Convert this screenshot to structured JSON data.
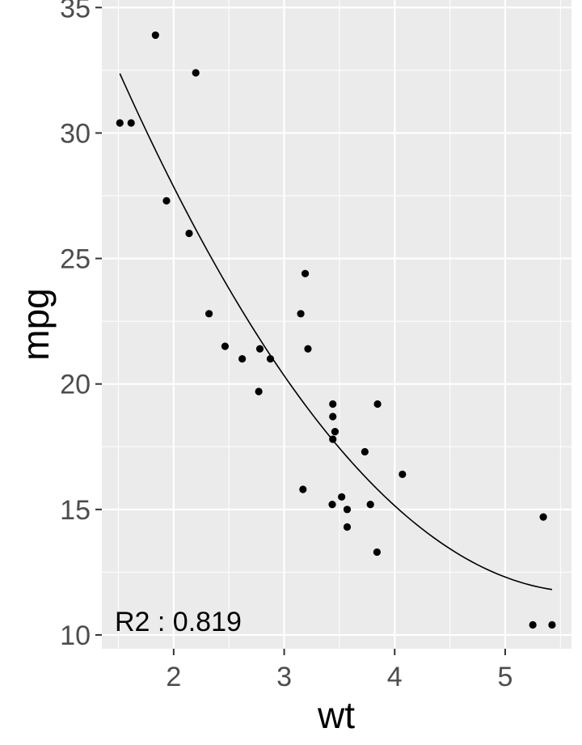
{
  "chart_data": {
    "type": "scatter",
    "title": "",
    "xlabel": "wt",
    "ylabel": "mpg",
    "xlim": [
      1.35,
      5.6
    ],
    "ylim": [
      9.45,
      35.3
    ],
    "x_ticks": [
      2,
      3,
      4,
      5
    ],
    "y_ticks": [
      10,
      15,
      20,
      25,
      30,
      35
    ],
    "grid": true,
    "legend": "none",
    "points": [
      {
        "x": 2.62,
        "y": 21.0
      },
      {
        "x": 2.875,
        "y": 21.0
      },
      {
        "x": 2.32,
        "y": 22.8
      },
      {
        "x": 3.215,
        "y": 21.4
      },
      {
        "x": 3.44,
        "y": 18.7
      },
      {
        "x": 3.46,
        "y": 18.1
      },
      {
        "x": 3.57,
        "y": 14.3
      },
      {
        "x": 3.19,
        "y": 24.4
      },
      {
        "x": 3.15,
        "y": 22.8
      },
      {
        "x": 3.44,
        "y": 19.2
      },
      {
        "x": 3.44,
        "y": 17.8
      },
      {
        "x": 4.07,
        "y": 16.4
      },
      {
        "x": 3.73,
        "y": 17.3
      },
      {
        "x": 3.78,
        "y": 15.2
      },
      {
        "x": 5.25,
        "y": 10.4
      },
      {
        "x": 5.424,
        "y": 10.4
      },
      {
        "x": 5.345,
        "y": 14.7
      },
      {
        "x": 2.2,
        "y": 32.4
      },
      {
        "x": 1.615,
        "y": 30.4
      },
      {
        "x": 1.835,
        "y": 33.9
      },
      {
        "x": 2.465,
        "y": 21.5
      },
      {
        "x": 3.52,
        "y": 15.5
      },
      {
        "x": 3.435,
        "y": 15.2
      },
      {
        "x": 3.84,
        "y": 13.3
      },
      {
        "x": 3.845,
        "y": 19.2
      },
      {
        "x": 1.935,
        "y": 27.3
      },
      {
        "x": 2.14,
        "y": 26.0
      },
      {
        "x": 1.513,
        "y": 30.4
      },
      {
        "x": 3.17,
        "y": 15.8
      },
      {
        "x": 2.77,
        "y": 19.7
      },
      {
        "x": 3.57,
        "y": 15.0
      },
      {
        "x": 2.78,
        "y": 21.4
      }
    ],
    "fit": {
      "type": "quadratic",
      "coefficients": [
        49.9308,
        -13.3803,
        1.1711
      ],
      "x_range": [
        1.513,
        5.424
      ]
    },
    "annotation": "R2 : 0.819",
    "colors": {
      "panel": "#ebebeb",
      "grid": "#ffffff",
      "points": "#000000",
      "fit_line": "#000000",
      "tick_text": "#4d4d4d"
    }
  }
}
